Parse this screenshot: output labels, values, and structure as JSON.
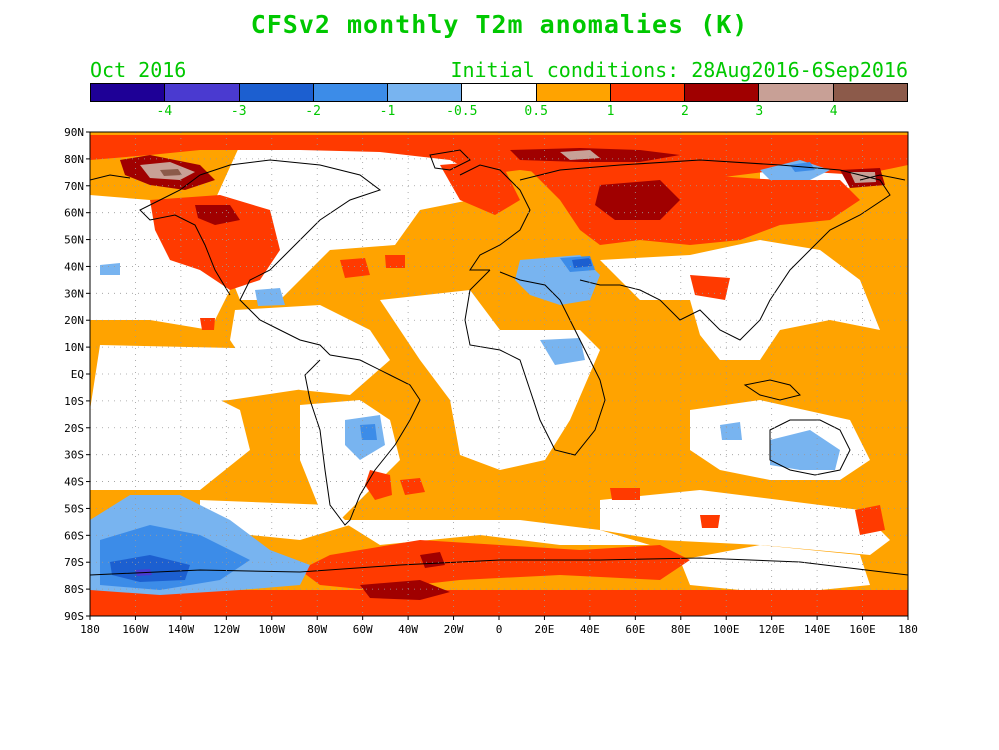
{
  "title": "CFSv2 monthly T2m anomalies (K)",
  "valid_month": "Oct 2016",
  "initial_conditions": "Initial conditions: 28Aug2016-6Sep2016",
  "colorbar": {
    "colors": [
      "#1e0096",
      "#4a3ad0",
      "#1c5fd0",
      "#3c8ce8",
      "#78b4f0",
      "#ffffff",
      "#ffa300",
      "#ff3a00",
      "#a00000",
      "#c8a096",
      "#8c5a4a"
    ],
    "labels": [
      "-4",
      "-3",
      "-2",
      "-1",
      "-0.5",
      "0.5",
      "1",
      "2",
      "3",
      "4"
    ]
  },
  "map": {
    "lat_labels": [
      "90N",
      "80N",
      "70N",
      "60N",
      "50N",
      "40N",
      "30N",
      "20N",
      "10N",
      "EQ",
      "10S",
      "20S",
      "30S",
      "40S",
      "50S",
      "60S",
      "70S",
      "80S",
      "90S"
    ],
    "lon_labels": [
      "180",
      "160W",
      "140W",
      "120W",
      "100W",
      "80W",
      "60W",
      "40W",
      "20W",
      "0",
      "20E",
      "40E",
      "60E",
      "80E",
      "100E",
      "120E",
      "140E",
      "160E",
      "180"
    ],
    "projection": "equirectangular",
    "grid": "dotted",
    "ocean_baseline_color": "#ffa300",
    "land_baseline_color": "#ffffff",
    "coastline_color": "#000000"
  }
}
